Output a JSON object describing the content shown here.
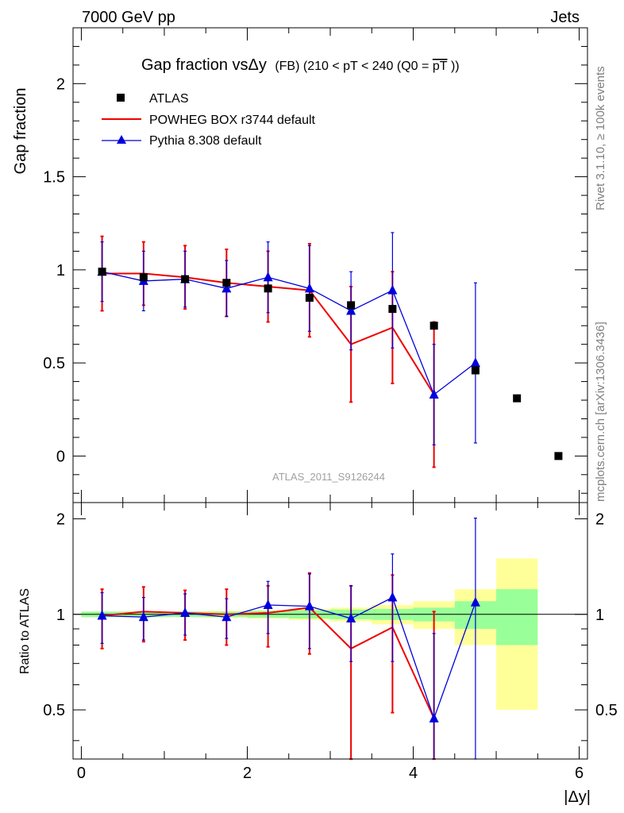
{
  "header": {
    "left": "7000 GeV pp",
    "right": "Jets"
  },
  "title": {
    "main": "Gap fraction vsΔy",
    "detail": "(FB) (210 < pT < 240 (Q0 =",
    "pt_bar": "pT",
    "close": "))"
  },
  "side_labels": {
    "rivet": "Rivet 3.1.10, ≥ 100k events",
    "mcplots": "mcplots.cern.ch [arXiv:1306.3436]"
  },
  "analysis_id": "ATLAS_2011_S9126244",
  "legend": [
    {
      "label": "ATLAS",
      "marker": "square",
      "color": "#000000"
    },
    {
      "label": "POWHEG BOX r3744 default",
      "marker": "line",
      "color": "#ee0000"
    },
    {
      "label": "Pythia 8.308 default",
      "marker": "triangle",
      "color": "#0000dd"
    }
  ],
  "chart_data": {
    "type": "scatter",
    "title": "Gap fraction vsΔy (FB) (210 < pT < 240 (Q0 =pT))",
    "xlabel": "|Δy|",
    "ylabel": "Gap fraction",
    "ratio_ylabel": "Ratio to ATLAS",
    "xlim": [
      -0.1,
      6.1
    ],
    "ylim": [
      -0.25,
      2.3
    ],
    "ratio_ylim": [
      0.35,
      2.25
    ],
    "x_ticks": [
      "0",
      "2",
      "4",
      "6"
    ],
    "y_ticks": [
      "0",
      "0.5",
      "1",
      "1.5",
      "2"
    ],
    "ratio_ticks": [
      "0.5",
      "1",
      "2"
    ],
    "bin_edges": [
      0,
      0.5,
      1.0,
      1.5,
      2.0,
      2.5,
      3.0,
      3.5,
      4.0,
      4.5,
      5.0,
      5.5,
      6.0
    ],
    "series": [
      {
        "name": "ATLAS",
        "x": [
          0.25,
          0.75,
          1.25,
          1.75,
          2.25,
          2.75,
          3.25,
          3.75,
          4.25,
          4.75,
          5.25,
          5.75
        ],
        "y": [
          0.99,
          0.96,
          0.95,
          0.93,
          0.9,
          0.85,
          0.81,
          0.79,
          0.7,
          0.46,
          0.31,
          0.0
        ]
      },
      {
        "name": "POWHEG BOX r3744 default",
        "x": [
          0.25,
          0.75,
          1.25,
          1.75,
          2.25,
          2.75,
          3.25,
          3.75,
          4.25
        ],
        "y": [
          0.98,
          0.98,
          0.96,
          0.93,
          0.91,
          0.89,
          0.6,
          0.69,
          0.33
        ],
        "err": [
          0.2,
          0.17,
          0.17,
          0.18,
          0.19,
          0.25,
          0.31,
          0.3,
          0.39
        ]
      },
      {
        "name": "Pythia 8.308 default",
        "x": [
          0.25,
          0.75,
          1.25,
          1.75,
          2.25,
          2.75,
          3.25,
          3.75,
          4.25,
          4.75
        ],
        "y": [
          0.99,
          0.94,
          0.95,
          0.9,
          0.96,
          0.9,
          0.78,
          0.89,
          0.33,
          0.5
        ],
        "err": [
          0.16,
          0.16,
          0.15,
          0.15,
          0.19,
          0.23,
          0.21,
          0.31,
          0.27,
          0.43
        ]
      }
    ],
    "ratio": {
      "atlas_band_inner": [
        0.02,
        0.02,
        0.02,
        0.02,
        0.025,
        0.03,
        0.035,
        0.04,
        0.05,
        0.1,
        0.2,
        0.0
      ],
      "atlas_band_outer": [
        0.02,
        0.02,
        0.02,
        0.025,
        0.03,
        0.04,
        0.05,
        0.07,
        0.1,
        0.2,
        0.5,
        0.0
      ],
      "powheg": {
        "y": [
          0.99,
          1.02,
          1.01,
          1.0,
          1.01,
          1.05,
          0.78,
          0.91,
          0.47
        ],
        "err": [
          0.21,
          0.2,
          0.18,
          0.2,
          0.22,
          0.3,
          0.45,
          0.42,
          0.55
        ]
      },
      "pythia": {
        "y": [
          0.99,
          0.98,
          1.01,
          0.98,
          1.07,
          1.06,
          0.97,
          1.13,
          0.47,
          1.09
        ],
        "err": [
          0.18,
          0.15,
          0.15,
          0.14,
          0.2,
          0.28,
          0.26,
          0.42,
          0.4,
          0.92
        ]
      }
    },
    "colors": {
      "atlas": "#000000",
      "powheg": "#ee0000",
      "pythia": "#0000dd",
      "band_inner": "#99ff99",
      "band_outer": "#ffff99"
    }
  }
}
